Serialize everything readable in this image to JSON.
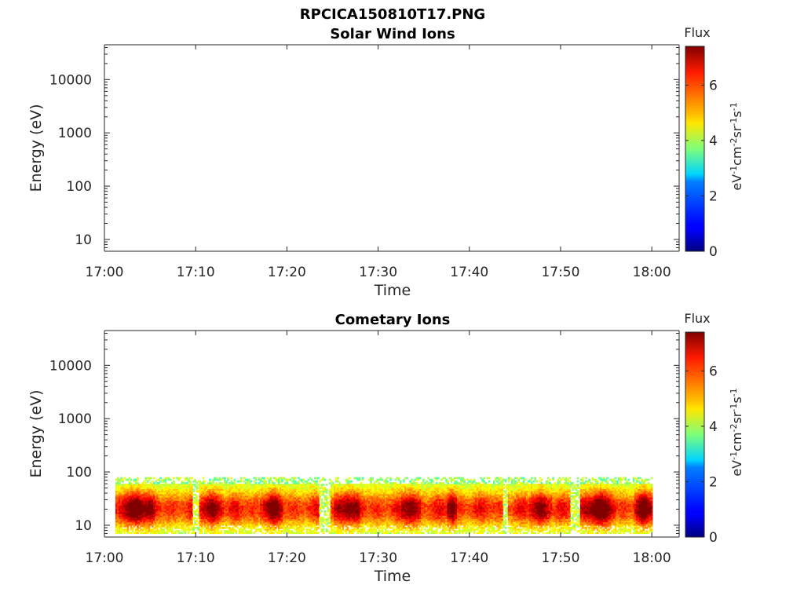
{
  "title": "RPCICA150810T17.PNG",
  "chart_data": [
    {
      "type": "heatmap",
      "title": "Solar Wind Ions",
      "xlabel": "Time",
      "ylabel": "Energy (eV)",
      "x_ticks": [
        "17:00",
        "17:10",
        "17:20",
        "17:30",
        "17:40",
        "17:50",
        "18:00"
      ],
      "x_range_minutes": [
        0,
        63
      ],
      "y_scale": "log",
      "y_ticks": [
        "10",
        "100",
        "1000",
        "10000"
      ],
      "ylim": [
        6,
        45000
      ],
      "colorbar": {
        "title": "Flux",
        "label": "eV-1cm-2sr-1s-1",
        "ticks": [
          "0",
          "2",
          "4",
          "6"
        ],
        "range": [
          0,
          7.4
        ],
        "colormap": "jet"
      },
      "cells": []
    },
    {
      "type": "heatmap",
      "title": "Cometary Ions",
      "xlabel": "Time",
      "ylabel": "Energy (eV)",
      "x_ticks": [
        "17:00",
        "17:10",
        "17:20",
        "17:30",
        "17:40",
        "17:50",
        "18:00"
      ],
      "x_range_minutes": [
        0,
        63
      ],
      "y_scale": "log",
      "y_ticks": [
        "10",
        "100",
        "1000",
        "10000"
      ],
      "ylim": [
        6,
        45000
      ],
      "colorbar": {
        "title": "Flux",
        "label": "eV-1cm-2sr-1s-1",
        "ticks": [
          "0",
          "2",
          "4",
          "6"
        ],
        "range": [
          0,
          7.4
        ],
        "colormap": "jet"
      },
      "energy_band_eV": [
        7,
        80
      ],
      "data_time_range_minutes": [
        1.2,
        60
      ],
      "intense_periods_minutes": [
        {
          "start": 1.5,
          "end": 5.5,
          "peak_flux": 7.2
        },
        {
          "start": 10.5,
          "end": 13,
          "peak_flux": 6.6
        },
        {
          "start": 17,
          "end": 19.5,
          "peak_flux": 6.6
        },
        {
          "start": 25,
          "end": 28,
          "peak_flux": 6.7
        },
        {
          "start": 32.5,
          "end": 34.5,
          "peak_flux": 6.7
        },
        {
          "start": 37.5,
          "end": 38.5,
          "peak_flux": 6.9
        },
        {
          "start": 46.5,
          "end": 49,
          "peak_flux": 6.6
        },
        {
          "start": 52,
          "end": 56,
          "peak_flux": 7.1
        },
        {
          "start": 58,
          "end": 60,
          "peak_flux": 6.8
        }
      ],
      "gaps_minutes": [
        {
          "start": 9.5,
          "end": 10.3
        },
        {
          "start": 23.5,
          "end": 24.7
        },
        {
          "start": 43.5,
          "end": 44.2
        },
        {
          "start": 51,
          "end": 52
        }
      ]
    }
  ]
}
